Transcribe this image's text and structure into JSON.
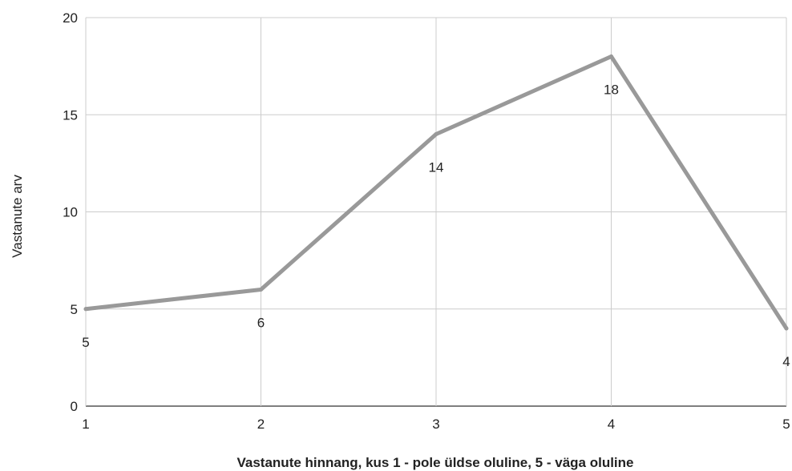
{
  "chart_data": {
    "type": "line",
    "title": "",
    "xlabel": "Vastanute hinnang, kus 1 - pole üldse oluline, 5 - väga oluline",
    "ylabel": "Vastanute arv",
    "x": [
      1,
      2,
      3,
      4,
      5
    ],
    "x_tick_labels": [
      "1",
      "2",
      "3",
      "4",
      "5"
    ],
    "y_ticks": [
      0,
      5,
      10,
      15,
      20
    ],
    "y_tick_labels": [
      "0",
      "5",
      "10",
      "15",
      "20"
    ],
    "xlim": [
      1,
      5
    ],
    "ylim": [
      0,
      20
    ],
    "grid": true,
    "legend": "none",
    "series": [
      {
        "values": [
          5,
          6,
          14,
          18,
          4
        ],
        "data_labels": [
          "5",
          "6",
          "14",
          "18",
          "4"
        ],
        "color": "#999999"
      }
    ]
  }
}
